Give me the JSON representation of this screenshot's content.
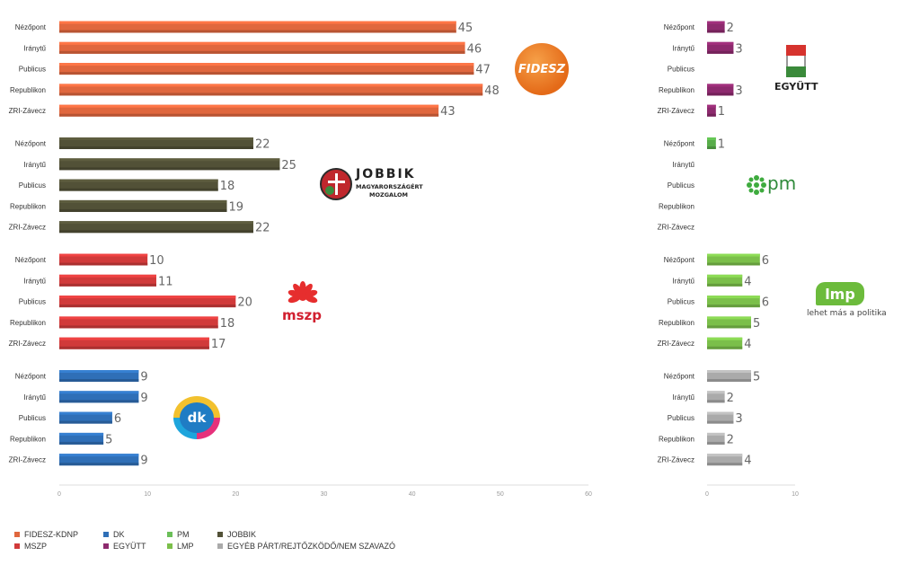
{
  "chart_data": [
    {
      "type": "bar",
      "orientation": "horizontal",
      "name": "left",
      "categories": [
        "Nézőpont",
        "Iránytű",
        "Publicus",
        "Republikon",
        "ZRI-Závecz"
      ],
      "xlim": [
        0,
        60
      ],
      "ticks": [
        0,
        10,
        20,
        30,
        40,
        50,
        60
      ],
      "series": [
        {
          "name": "FIDESZ-KDNP",
          "color": "#e0673e",
          "values": [
            45,
            46,
            47,
            48,
            43
          ]
        },
        {
          "name": "JOBBIK",
          "color": "#525137",
          "values": [
            22,
            25,
            18,
            19,
            22
          ]
        },
        {
          "name": "MSZP",
          "color": "#d13a3a",
          "values": [
            10,
            11,
            20,
            18,
            17
          ]
        },
        {
          "name": "DK",
          "color": "#2f6fb7",
          "values": [
            9,
            9,
            6,
            5,
            9
          ]
        }
      ]
    },
    {
      "type": "bar",
      "orientation": "horizontal",
      "name": "right",
      "categories": [
        "Nézőpont",
        "Iránytű",
        "Publicus",
        "Republikon",
        "ZRI-Závecz"
      ],
      "xlim": [
        0,
        10
      ],
      "ticks": [
        0,
        10
      ],
      "series": [
        {
          "name": "EGYÜTT",
          "color": "#8d2a6e",
          "values": [
            2,
            3,
            null,
            3,
            1
          ]
        },
        {
          "name": "PM",
          "color": "#58ad4a",
          "values": [
            1,
            null,
            null,
            null,
            null
          ]
        },
        {
          "name": "LMP",
          "color": "#7bbf4a",
          "values": [
            6,
            4,
            6,
            5,
            4
          ]
        },
        {
          "name": "EGYÉB PÁRT/REJTŐZKÖDŐ/NEM SZAVAZÓ",
          "color": "#aaaaaa",
          "values": [
            5,
            2,
            3,
            2,
            4
          ]
        }
      ]
    }
  ],
  "legend": [
    {
      "label": "FIDESZ-KDNP",
      "color": "#e0673e"
    },
    {
      "label": "MSZP",
      "color": "#d13a3a"
    },
    {
      "label": "DK",
      "color": "#2f6fb7"
    },
    {
      "label": "EGYÜTT",
      "color": "#8d2a6e"
    },
    {
      "label": "PM",
      "color": "#6bbf59"
    },
    {
      "label": "LMP",
      "color": "#7bbf4a"
    },
    {
      "label": "JOBBIK",
      "color": "#525137"
    },
    {
      "label": "EGYÉB PÁRT/REJTŐZKÖDŐ/NEM SZAVAZÓ",
      "color": "#aaaaaa"
    }
  ],
  "logos": {
    "fidesz": "FIDESZ",
    "jobbik_name": "JOBBIK",
    "jobbik_line2": "MAGYARORSZÁGÉRT",
    "jobbik_line3": "MOZGALOM",
    "mszp": "mszp",
    "dk": "dk",
    "egyutt": "EGYÜTT",
    "pm": "pm",
    "lmp": "lmp",
    "lmp_slogan": "lehet más a politika"
  }
}
